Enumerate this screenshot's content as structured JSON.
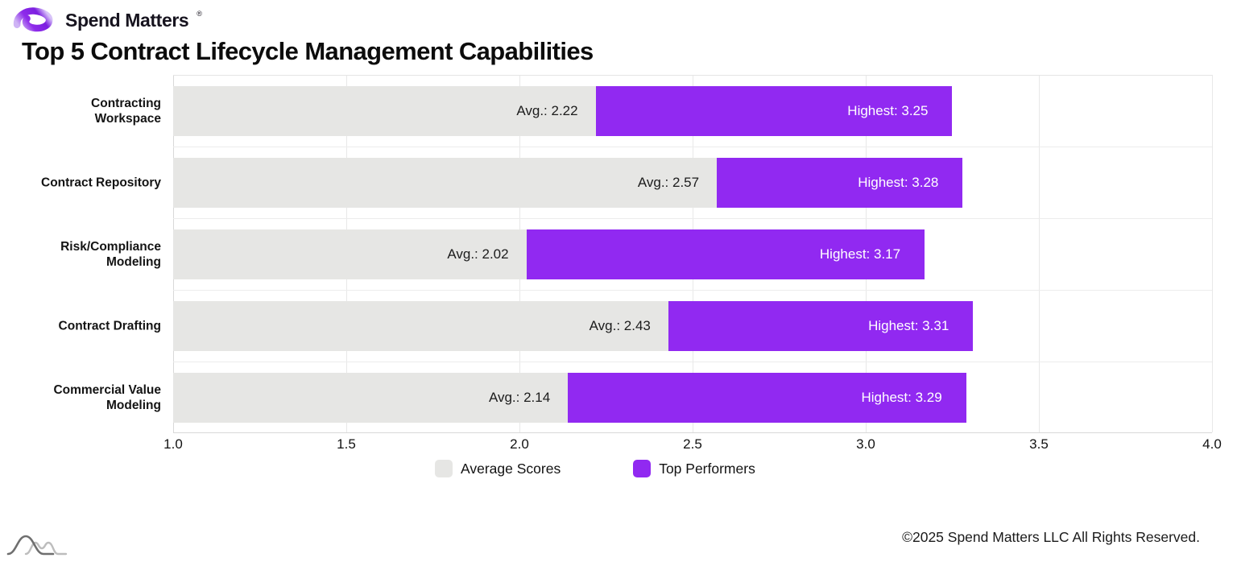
{
  "brand": {
    "name": "Spend Matters",
    "registered": "®"
  },
  "title": "Top 5 Contract Lifecycle Management Capabilities",
  "legend": {
    "items": [
      {
        "label": "Average Scores",
        "color": "#E6E6E4"
      },
      {
        "label": "Top Performers",
        "color": "#9129F1"
      }
    ]
  },
  "footer": {
    "copyright": "©2025 Spend Matters LLC All Rights Reserved."
  },
  "icons": {
    "logo": "spend-matters-swirl",
    "watermark": "overlapping-bell-curves"
  },
  "chart_data": {
    "type": "bar",
    "orientation": "horizontal",
    "title": "Top 5 Contract Lifecycle Management Capabilities",
    "categories": [
      "Contracting Workspace",
      "Contract Repository",
      "Risk/Compliance Modeling",
      "Contract Drafting",
      "Commercial Value Modeling"
    ],
    "category_display": [
      "Contracting\nWorkspace",
      "Contract Repository",
      "Risk/Compliance\nModeling",
      "Contract Drafting",
      "Commercial Value\nModeling"
    ],
    "series": [
      {
        "name": "Average Scores",
        "label_prefix": "Avg.: ",
        "color": "#E6E6E4",
        "text_color": "#1c1c1c",
        "values": [
          2.22,
          2.57,
          2.02,
          2.43,
          2.14
        ]
      },
      {
        "name": "Top Performers",
        "label_prefix": "Highest: ",
        "color": "#9129F1",
        "text_color": "#ffffff",
        "values": [
          3.25,
          3.28,
          3.17,
          3.31,
          3.29
        ]
      }
    ],
    "xlim": [
      1.0,
      4.0
    ],
    "xticks": [
      "1.0",
      "1.5",
      "2.0",
      "2.5",
      "3.0",
      "3.5",
      "4.0"
    ],
    "grid": true,
    "legend_position": "bottom",
    "bar_style": "segmented-from-axis"
  }
}
